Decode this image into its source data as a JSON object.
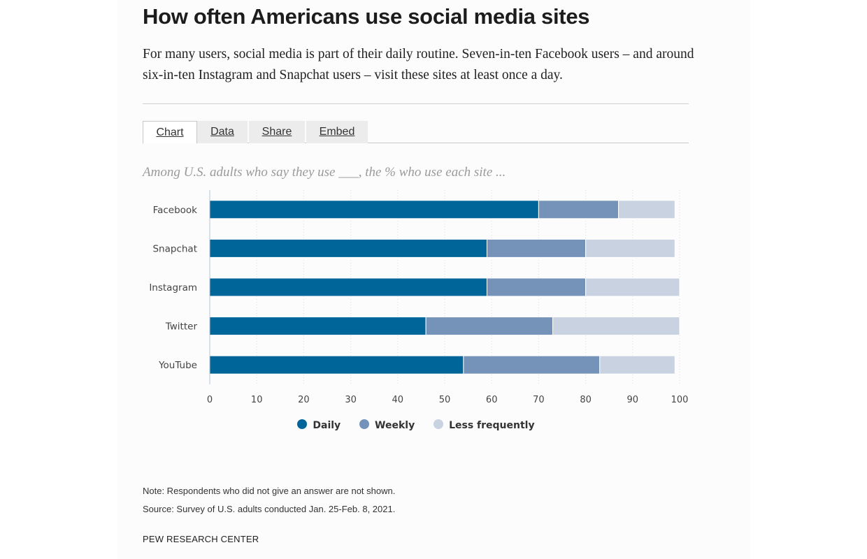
{
  "headline": "How often Americans use social media sites",
  "dek": "For many users, social media is part of their daily routine. Seven-in-ten Facebook users – and around six-in-ten Instagram and Snapchat users – visit these sites at least once a day.",
  "tabs": [
    {
      "label": "Chart",
      "active": true
    },
    {
      "label": "Data",
      "active": false
    },
    {
      "label": "Share",
      "active": false
    },
    {
      "label": "Embed",
      "active": false
    }
  ],
  "note": "Note: Respondents who did not give an answer are not shown.",
  "source": "Source: Survey of U.S. adults conducted Jan. 25-Feb. 8, 2021.",
  "organization": "PEW RESEARCH CENTER",
  "chart_data": {
    "type": "bar",
    "orientation": "horizontal",
    "stacked": true,
    "title": "Among U.S. adults who say they use ___, the % who use each site ...",
    "categories": [
      "Facebook",
      "Snapchat",
      "Instagram",
      "Twitter",
      "YouTube"
    ],
    "series": [
      {
        "name": "Daily",
        "color": "#006699",
        "values": [
          70,
          59,
          59,
          46,
          54
        ]
      },
      {
        "name": "Weekly",
        "color": "#7593b9",
        "values": [
          17,
          21,
          21,
          27,
          29
        ]
      },
      {
        "name": "Less frequently",
        "color": "#c8d2e1",
        "values": [
          12,
          19,
          20,
          27,
          16
        ]
      }
    ],
    "xlim": [
      0,
      100
    ],
    "xticks": [
      0,
      10,
      20,
      30,
      40,
      50,
      60,
      70,
      80,
      90,
      100
    ],
    "grid": true,
    "legend": "bottom"
  }
}
